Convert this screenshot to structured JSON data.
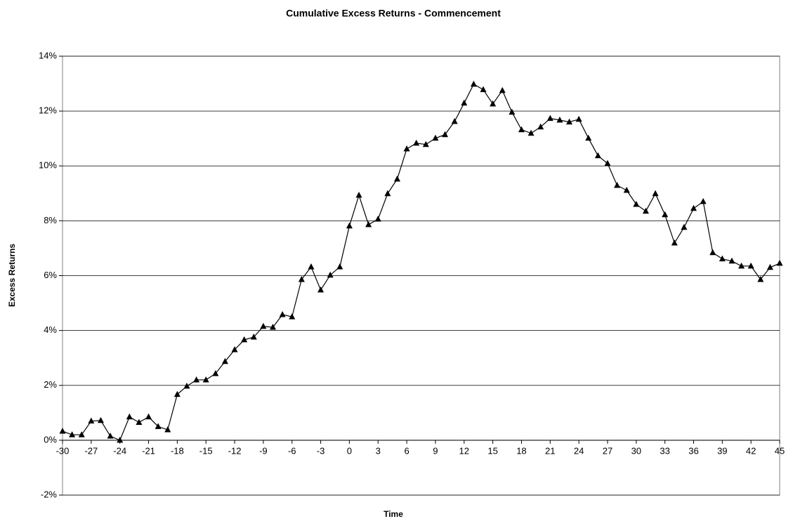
{
  "chart_data": {
    "type": "line",
    "title": "Cumulative Excess Returns - Commencement",
    "x_label": "Time",
    "y_label": "Excess Returns",
    "x": [
      -30,
      -29,
      -28,
      -27,
      -26,
      -25,
      -24,
      -23,
      -22,
      -21,
      -20,
      -19,
      -18,
      -17,
      -16,
      -15,
      -14,
      -13,
      -12,
      -11,
      -10,
      -9,
      -8,
      -7,
      -6,
      -5,
      -4,
      -3,
      -2,
      -1,
      0,
      1,
      2,
      3,
      4,
      5,
      6,
      7,
      8,
      9,
      10,
      11,
      12,
      13,
      14,
      15,
      16,
      17,
      18,
      19,
      20,
      21,
      22,
      23,
      24,
      25,
      26,
      27,
      28,
      29,
      30,
      31,
      32,
      33,
      34,
      35,
      36,
      37,
      38,
      39,
      40,
      41,
      42,
      43,
      44,
      45
    ],
    "series": [
      {
        "color": "#000000",
        "values": [
          0.33,
          0.2,
          0.2,
          0.7,
          0.72,
          0.15,
          0.0,
          0.85,
          0.65,
          0.85,
          0.5,
          0.38,
          1.67,
          1.97,
          2.2,
          2.2,
          2.43,
          2.87,
          3.3,
          3.66,
          3.76,
          4.15,
          4.12,
          4.58,
          4.5,
          5.86,
          6.32,
          5.48,
          6.02,
          6.32,
          7.81,
          8.93,
          7.86,
          8.06,
          8.99,
          9.52,
          10.62,
          10.83,
          10.78,
          11.01,
          11.14,
          11.62,
          12.29,
          12.98,
          12.78,
          12.26,
          12.75,
          11.96,
          11.32,
          11.19,
          11.42,
          11.73,
          11.67,
          11.6,
          11.7,
          11.01,
          10.37,
          10.09,
          9.29,
          9.11,
          8.6,
          8.35,
          8.99,
          8.22,
          7.19,
          7.76,
          8.45,
          8.7,
          6.84,
          6.61,
          6.53,
          6.35,
          6.35,
          5.86,
          6.3,
          6.45
        ]
      }
    ],
    "xlim": [
      -30,
      45
    ],
    "xticks": [
      -30,
      -27,
      -24,
      -21,
      -18,
      -15,
      -12,
      -9,
      -6,
      -3,
      0,
      3,
      6,
      9,
      12,
      15,
      18,
      21,
      24,
      27,
      30,
      33,
      36,
      39,
      42,
      45
    ],
    "ylim": [
      -2,
      14
    ],
    "yticks": [
      {
        "value": -2,
        "label": "-2%"
      },
      {
        "value": 0,
        "label": "0%"
      },
      {
        "value": 2,
        "label": "2%"
      },
      {
        "value": 4,
        "label": "4%"
      },
      {
        "value": 6,
        "label": "6%"
      },
      {
        "value": 8,
        "label": "8%"
      },
      {
        "value": 10,
        "label": "10%"
      },
      {
        "value": 12,
        "label": "12%"
      },
      {
        "value": 14,
        "label": "14%"
      }
    ],
    "grid": true
  }
}
